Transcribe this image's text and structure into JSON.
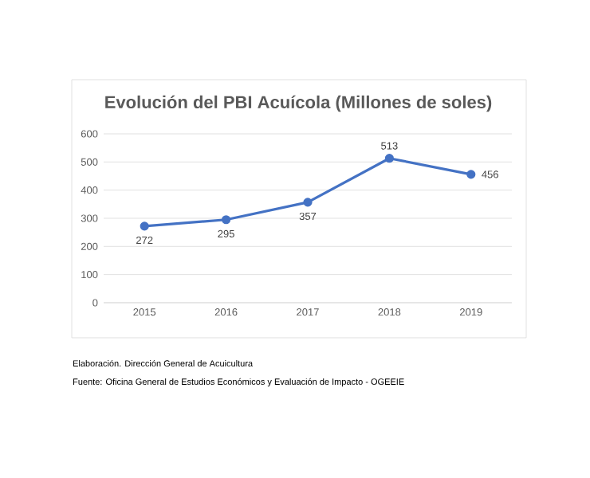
{
  "chart_data": {
    "type": "line",
    "title": "Evolución del PBI Acuícola (Millones de soles)",
    "categories": [
      "2015",
      "2016",
      "2017",
      "2018",
      "2019"
    ],
    "series": [
      {
        "color": "#4472c4",
        "values": [
          272,
          295,
          357,
          513,
          456
        ]
      }
    ],
    "ylim": [
      0,
      600
    ],
    "yticks": [
      0,
      100,
      200,
      300,
      400,
      500,
      600
    ],
    "grid": "y",
    "marker": "circle",
    "line_style": "solid",
    "data_labels": true,
    "annotations": [
      "Elaboración. Dirección General de Acuicultura",
      "Fuente: Oficina General de Estudios Económicos y Evaluación de Impacto - OGEEIE"
    ]
  }
}
